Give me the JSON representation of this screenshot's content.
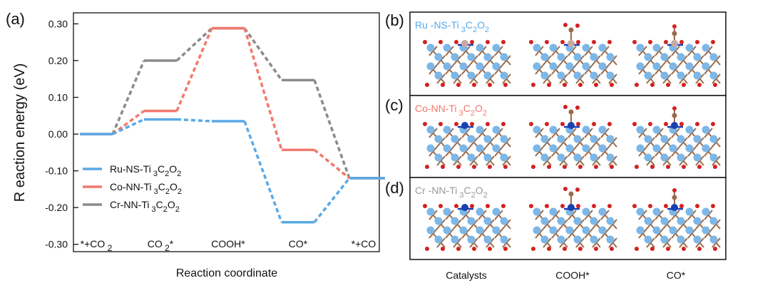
{
  "figure": {
    "panel_a_tag": "(a)",
    "panel_b_tag": "(b)",
    "panel_c_tag": "(c)",
    "panel_d_tag": "(d)"
  },
  "chart_data": {
    "type": "line",
    "subtype": "energy-level diagram",
    "title": "",
    "xlabel": "Reaction coordinate",
    "ylabel": "R eaction energy  (eV)",
    "ylim": [
      -0.32,
      0.33
    ],
    "yticks": [
      0.3,
      0.2,
      0.1,
      0.0,
      -0.1,
      -0.2,
      -0.3
    ],
    "ytick_labels": [
      "0.30",
      "0.20",
      "0.10",
      "0.00",
      "-0.10",
      "-0.20",
      "-0.30"
    ],
    "categories": [
      {
        "label": "*+CO",
        "sub": "2"
      },
      {
        "label": "CO",
        "sub": "2",
        "suffix": "*"
      },
      {
        "label": "COOH*",
        "sub": "",
        "suffix": ""
      },
      {
        "label": "CO*",
        "sub": "",
        "suffix": ""
      },
      {
        "label": "*+CO",
        "sub": "",
        "suffix": ""
      }
    ],
    "series": [
      {
        "name": "Ru-NS-Ti",
        "formula": [
          "3",
          "C",
          "2",
          "O",
          "2"
        ],
        "color": "#5aa9e6",
        "values": [
          0.0,
          0.04,
          0.035,
          -0.24,
          -0.12
        ]
      },
      {
        "name": "Co-NN-Ti",
        "formula": [
          "3",
          "C",
          "2",
          "O",
          "2"
        ],
        "color": "#f0796c",
        "values": [
          0.0,
          0.063,
          0.288,
          -0.043,
          -0.12
        ]
      },
      {
        "name": "Cr-NN-Ti",
        "formula": [
          "3",
          "C",
          "2",
          "O",
          "2"
        ],
        "color": "#8b8b8b",
        "values": [
          0.0,
          0.2,
          0.288,
          0.147,
          -0.12
        ]
      }
    ],
    "legend_position": "lower-left",
    "grid": false
  },
  "structures": {
    "panel_b_title": "Ru -NS-Ti",
    "panel_c_title": "Co-NN-Ti",
    "panel_d_title": "Cr -NN-Ti",
    "title_formula": [
      "3",
      "C",
      "2",
      "O",
      "2"
    ],
    "panel_b_color": "#5aa9e6",
    "panel_c_color": "#f0796c",
    "panel_d_color": "#9a9a9a",
    "column_labels": [
      "Catalysts",
      "COOH*",
      "CO*"
    ],
    "atom_colors": {
      "ti": "#7cb7e8",
      "c": "#9a6a4a",
      "o": "#d42020",
      "n": "#1a3fb0",
      "ru": "#c9a8a0",
      "co": "#1a3fb0",
      "cr": "#1a3fb0"
    }
  }
}
